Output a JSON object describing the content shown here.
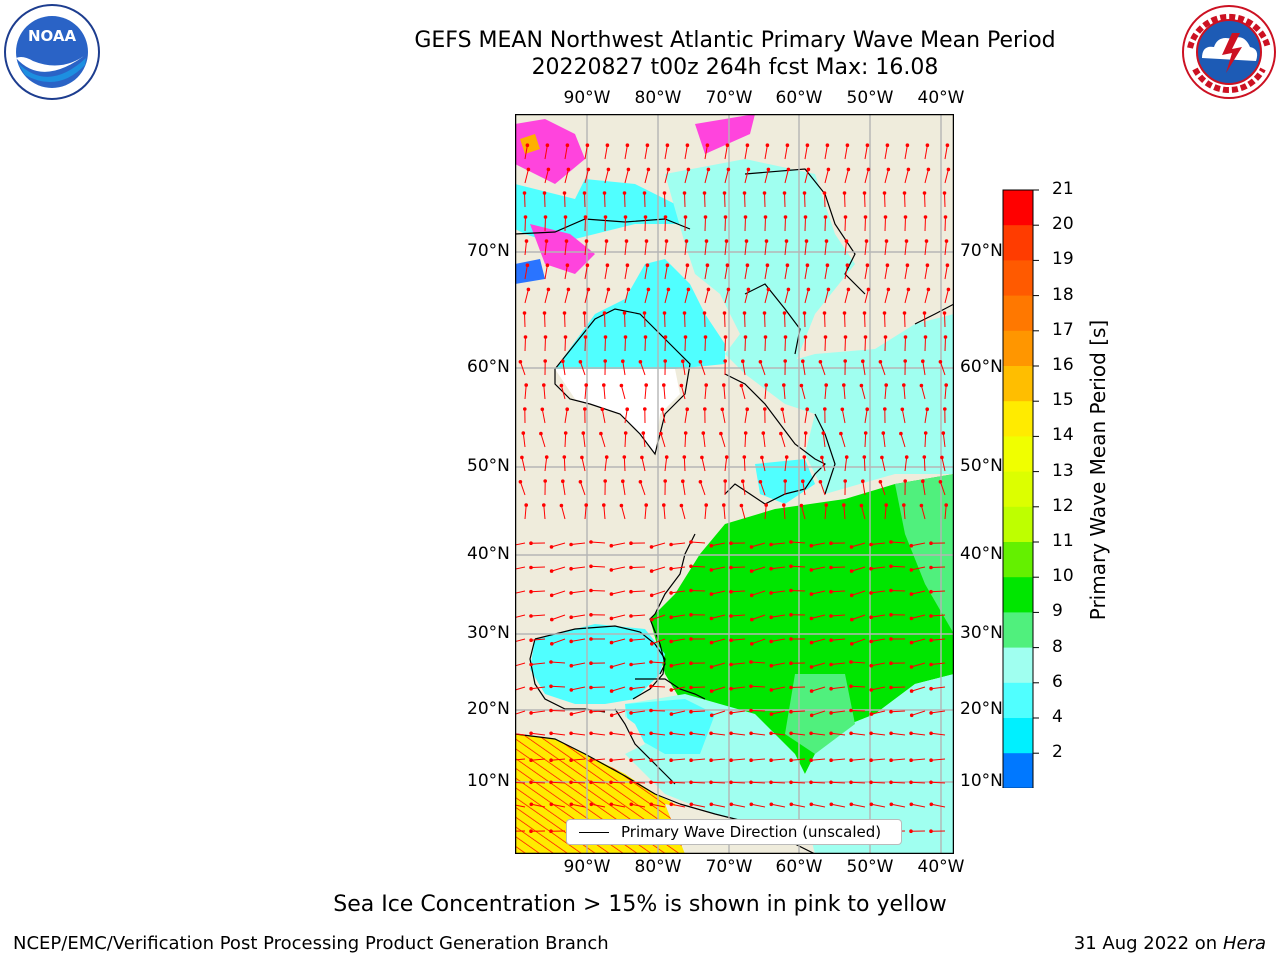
{
  "title_line1": "GEFS MEAN Northwest Atlantic Primary Wave Mean Period",
  "title_line2": "20220827 t00z 264h fcst   Max: 16.08",
  "logos": {
    "left": {
      "icon": "noaa-logo",
      "text": "NOAA"
    },
    "right": {
      "icon": "nws-logo"
    }
  },
  "map": {
    "lon_labels": [
      "90°W",
      "80°W",
      "70°W",
      "60°W",
      "50°W",
      "40°W"
    ],
    "lat_labels_left": [
      "70°N",
      "60°N",
      "50°N",
      "40°N",
      "30°N",
      "20°N",
      "10°N"
    ],
    "lat_labels_right": [
      "70°N",
      "60°N",
      "50°N",
      "40°N",
      "30°N",
      "20°N",
      "10°N"
    ],
    "land_color": "#efecdc",
    "legend_label": "Primary Wave Direction (unscaled)",
    "arrow_color": "#ff0000"
  },
  "colorbar": {
    "title": "Primary Wave Mean Period [s]",
    "tick_labels": [
      "21",
      "20",
      "19",
      "18",
      "17",
      "16",
      "15",
      "14",
      "13",
      "12",
      "11",
      "10",
      "9",
      "8",
      "6",
      "4",
      "2"
    ],
    "colors": [
      "#ff0000",
      "#ff3c00",
      "#ff5a00",
      "#ff7800",
      "#ff9600",
      "#ffbe00",
      "#ffeb00",
      "#f0ff00",
      "#dcff00",
      "#beff00",
      "#64f000",
      "#00e600",
      "#50f07d",
      "#a0fff0",
      "#50ffff",
      "#00f0ff",
      "#0078ff"
    ],
    "under_color": "#0000ff"
  },
  "footer_note": "Sea Ice Concentration > 15% is shown in pink to yellow",
  "footer_left": "NCEP/EMC/Verification Post Processing Product Generation Branch",
  "footer_right_date": "31 Aug 2022 on",
  "footer_right_host": "Hera"
}
